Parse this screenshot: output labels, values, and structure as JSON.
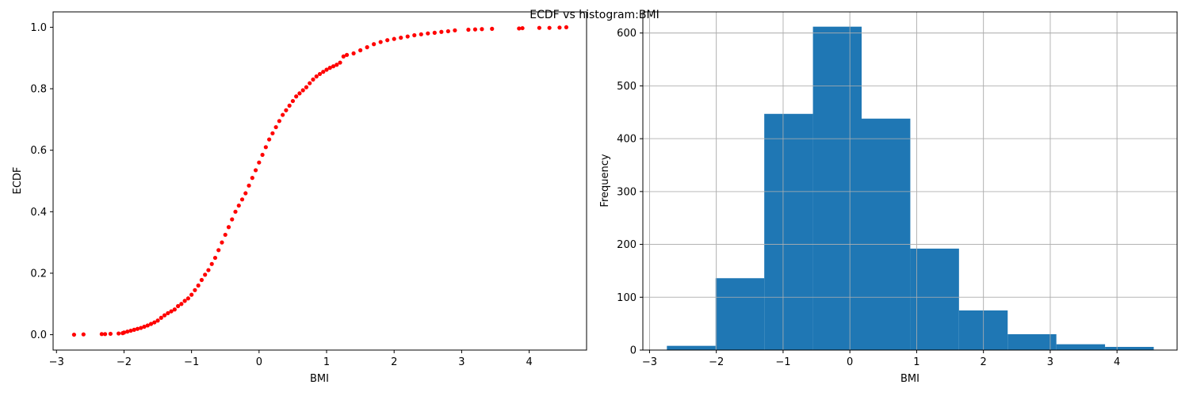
{
  "suptitle": "ECDF vs histogram:BMI",
  "chart_data": [
    {
      "type": "scatter",
      "xlabel": "BMI",
      "ylabel": "ECDF",
      "xlim": [
        -3.05,
        4.85
      ],
      "ylim": [
        -0.05,
        1.05
      ],
      "xticks": [
        -3,
        -2,
        -1,
        0,
        1,
        2,
        3,
        4
      ],
      "yticks": [
        0.0,
        0.2,
        0.4,
        0.6,
        0.8,
        1.0
      ],
      "grid": false,
      "marker_color": "#ff0000",
      "points": [
        [
          -2.74,
          0.0
        ],
        [
          -2.6,
          0.001
        ],
        [
          -2.33,
          0.002
        ],
        [
          -2.28,
          0.002
        ],
        [
          -2.2,
          0.003
        ],
        [
          -2.08,
          0.004
        ],
        [
          -2.02,
          0.005
        ],
        [
          -2.0,
          0.007
        ],
        [
          -1.95,
          0.01
        ],
        [
          -1.9,
          0.013
        ],
        [
          -1.85,
          0.016
        ],
        [
          -1.8,
          0.019
        ],
        [
          -1.75,
          0.022
        ],
        [
          -1.7,
          0.026
        ],
        [
          -1.65,
          0.03
        ],
        [
          -1.6,
          0.035
        ],
        [
          -1.55,
          0.04
        ],
        [
          -1.5,
          0.046
        ],
        [
          -1.45,
          0.055
        ],
        [
          -1.4,
          0.063
        ],
        [
          -1.35,
          0.07
        ],
        [
          -1.3,
          0.076
        ],
        [
          -1.25,
          0.082
        ],
        [
          -1.2,
          0.093
        ],
        [
          -1.15,
          0.1
        ],
        [
          -1.1,
          0.11
        ],
        [
          -1.05,
          0.118
        ],
        [
          -1.0,
          0.13
        ],
        [
          -0.95,
          0.145
        ],
        [
          -0.9,
          0.16
        ],
        [
          -0.85,
          0.178
        ],
        [
          -0.8,
          0.195
        ],
        [
          -0.75,
          0.21
        ],
        [
          -0.7,
          0.23
        ],
        [
          -0.65,
          0.25
        ],
        [
          -0.6,
          0.275
        ],
        [
          -0.55,
          0.3
        ],
        [
          -0.5,
          0.325
        ],
        [
          -0.45,
          0.35
        ],
        [
          -0.4,
          0.375
        ],
        [
          -0.35,
          0.4
        ],
        [
          -0.3,
          0.42
        ],
        [
          -0.25,
          0.44
        ],
        [
          -0.2,
          0.46
        ],
        [
          -0.15,
          0.485
        ],
        [
          -0.1,
          0.51
        ],
        [
          -0.05,
          0.535
        ],
        [
          0.0,
          0.56
        ],
        [
          0.05,
          0.585
        ],
        [
          0.1,
          0.61
        ],
        [
          0.15,
          0.635
        ],
        [
          0.2,
          0.655
        ],
        [
          0.25,
          0.675
        ],
        [
          0.3,
          0.695
        ],
        [
          0.35,
          0.715
        ],
        [
          0.4,
          0.73
        ],
        [
          0.45,
          0.745
        ],
        [
          0.5,
          0.76
        ],
        [
          0.55,
          0.775
        ],
        [
          0.6,
          0.785
        ],
        [
          0.65,
          0.795
        ],
        [
          0.7,
          0.805
        ],
        [
          0.75,
          0.818
        ],
        [
          0.8,
          0.83
        ],
        [
          0.85,
          0.84
        ],
        [
          0.9,
          0.848
        ],
        [
          0.95,
          0.855
        ],
        [
          1.0,
          0.862
        ],
        [
          1.05,
          0.868
        ],
        [
          1.1,
          0.873
        ],
        [
          1.15,
          0.878
        ],
        [
          1.2,
          0.885
        ],
        [
          1.25,
          0.905
        ],
        [
          1.3,
          0.91
        ],
        [
          1.4,
          0.915
        ],
        [
          1.5,
          0.925
        ],
        [
          1.6,
          0.935
        ],
        [
          1.7,
          0.945
        ],
        [
          1.8,
          0.952
        ],
        [
          1.9,
          0.958
        ],
        [
          2.0,
          0.962
        ],
        [
          2.1,
          0.966
        ],
        [
          2.2,
          0.97
        ],
        [
          2.3,
          0.974
        ],
        [
          2.4,
          0.977
        ],
        [
          2.5,
          0.98
        ],
        [
          2.6,
          0.982
        ],
        [
          2.7,
          0.985
        ],
        [
          2.8,
          0.987
        ],
        [
          2.9,
          0.99
        ],
        [
          3.1,
          0.992
        ],
        [
          3.2,
          0.993
        ],
        [
          3.3,
          0.994
        ],
        [
          3.45,
          0.995
        ],
        [
          3.85,
          0.996
        ],
        [
          3.9,
          0.997
        ],
        [
          4.15,
          0.998
        ],
        [
          4.3,
          0.998
        ],
        [
          4.45,
          0.999
        ],
        [
          4.55,
          1.0
        ]
      ]
    },
    {
      "type": "bar",
      "xlabel": "BMI",
      "ylabel": "Frequency",
      "xlim": [
        -3.1,
        4.9
      ],
      "ylim": [
        0,
        640
      ],
      "xticks": [
        -3,
        -2,
        -1,
        0,
        1,
        2,
        3,
        4
      ],
      "yticks": [
        0,
        100,
        200,
        300,
        400,
        500,
        600
      ],
      "grid": true,
      "bar_color": "#1f77b4",
      "bin_edges": [
        -2.74,
        -2.011,
        -1.282,
        -0.553,
        0.176,
        0.905,
        1.634,
        2.363,
        3.092,
        3.821,
        4.55
      ],
      "values": [
        8,
        136,
        447,
        612,
        438,
        192,
        75,
        30,
        11,
        6
      ]
    }
  ]
}
